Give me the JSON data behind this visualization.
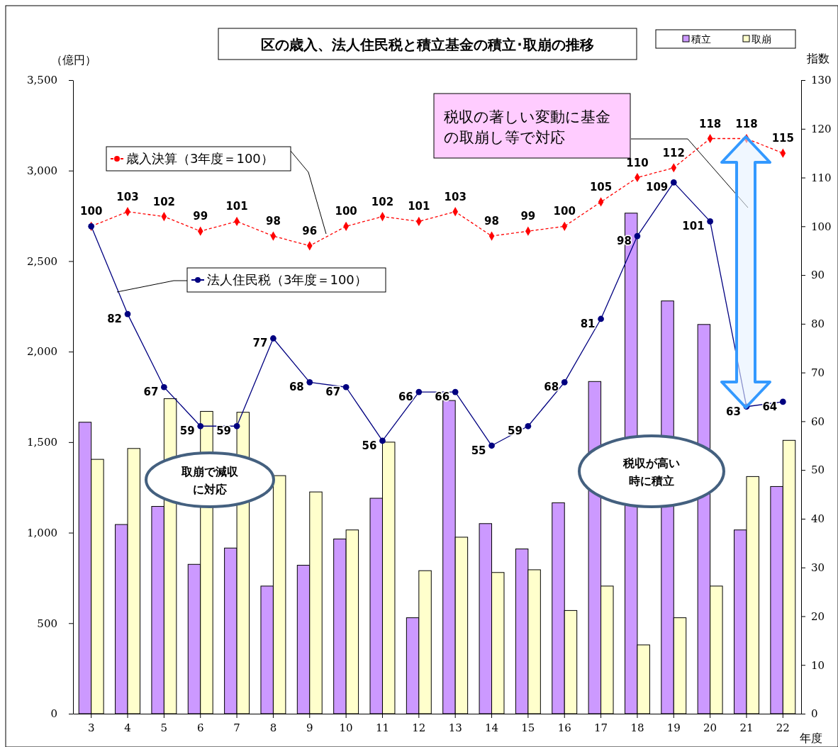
{
  "chart_data": {
    "type": "bar",
    "title": "区の歳入、法人住民税と積立基金の積立･取崩の推移",
    "xlabel": "年度",
    "ylabel": "（億円）",
    "y2label": "指数",
    "categories": [
      "3",
      "4",
      "5",
      "6",
      "7",
      "8",
      "9",
      "10",
      "11",
      "12",
      "13",
      "14",
      "15",
      "16",
      "17",
      "18",
      "19",
      "20",
      "21",
      "22"
    ],
    "series": [
      {
        "name": "積立",
        "color": "#cc99ff",
        "values": [
          1610,
          1045,
          1145,
          825,
          915,
          705,
          820,
          965,
          1190,
          530,
          1730,
          1050,
          910,
          1165,
          1835,
          2765,
          2280,
          2150,
          1015,
          1255
        ]
      },
      {
        "name": "取崩",
        "color": "#ffffcc",
        "values": [
          1405,
          1465,
          1740,
          1670,
          1665,
          1315,
          1225,
          1015,
          1500,
          790,
          975,
          780,
          795,
          570,
          705,
          380,
          530,
          705,
          1310,
          1510
        ]
      },
      {
        "name": "歳入決算（3年度＝100）",
        "type": "line",
        "axis": "y2",
        "color": "#ff0000",
        "marker": "diamond",
        "line_style": "dashed",
        "values": [
          100,
          103,
          102,
          99,
          101,
          98,
          96,
          100,
          102,
          101,
          103,
          98,
          99,
          100,
          105,
          110,
          112,
          118,
          118,
          115
        ],
        "value_labels": [
          "100",
          "103",
          "102",
          "99",
          "101",
          "98",
          "96",
          "100",
          "102",
          "101",
          "103",
          "98",
          "99",
          "100",
          "105",
          "110",
          "112",
          "118",
          "118",
          "115"
        ]
      },
      {
        "name": "法人住民税（3年度＝100）",
        "type": "line",
        "axis": "y2",
        "color": "#000080",
        "marker": "circle",
        "line_style": "solid",
        "values": [
          100,
          82,
          67,
          59,
          59,
          77,
          68,
          67,
          56,
          66,
          66,
          55,
          59,
          68,
          81,
          98,
          109,
          101,
          63,
          64
        ],
        "value_labels": [
          null,
          "82",
          "67",
          "59",
          "59",
          "77",
          "68",
          "67",
          "56",
          "66",
          "66",
          "55",
          "59",
          "68",
          "81",
          "98",
          "109",
          "101",
          "63",
          "64"
        ]
      }
    ],
    "ylim": [
      0,
      3500
    ],
    "yticks": [
      0,
      500,
      {
        "value": 1000,
        "label": "1,000"
      },
      {
        "value": 1500,
        "label": "1,500"
      },
      {
        "value": 2000,
        "label": "2,000"
      },
      {
        "value": 2500,
        "label": "2,500"
      },
      {
        "value": 3000,
        "label": "3,000"
      },
      {
        "value": 3500,
        "label": "3,500"
      }
    ],
    "y2lim": [
      0,
      130
    ],
    "y2ticks": [
      0,
      10,
      20,
      30,
      40,
      50,
      60,
      70,
      80,
      90,
      100,
      110,
      120,
      130
    ],
    "legend": "top right",
    "grid": false,
    "annotations": [
      "税収の著しい変動に基金の取崩し等で対応",
      "取崩で減収に対応",
      "税収が高い時に積立"
    ]
  }
}
